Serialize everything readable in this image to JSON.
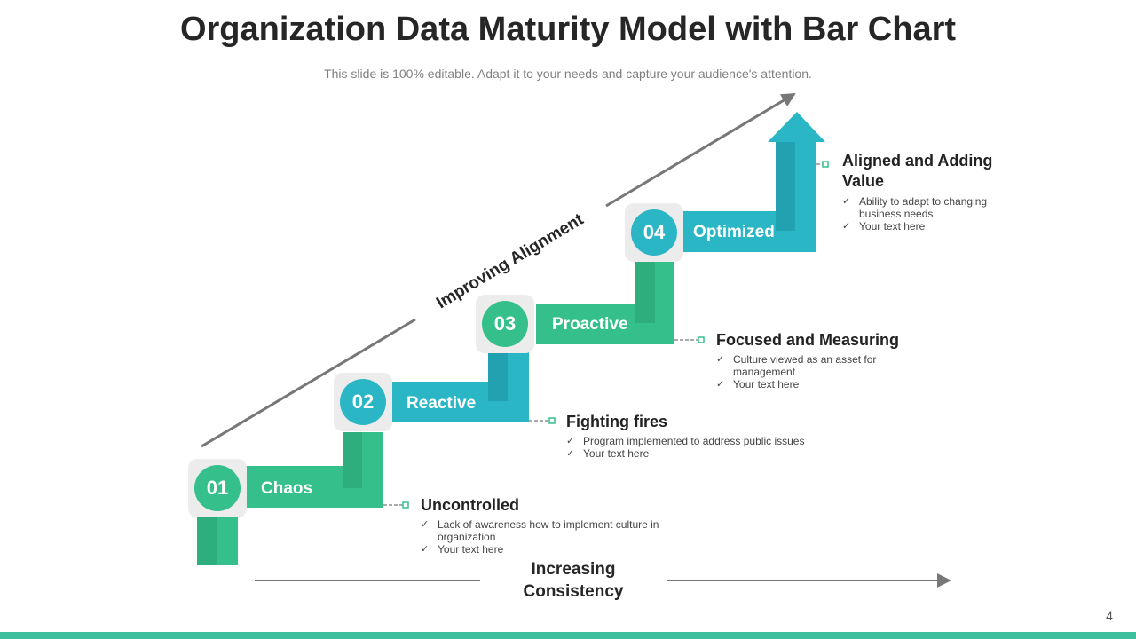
{
  "header": {
    "title": "Organization Data Maturity Model with Bar Chart",
    "subtitle": "This slide is 100% editable. Adapt it to your needs and capture your audience's attention."
  },
  "axes": {
    "diagonal": "Improving Alignment",
    "horizontal": "Increasing Consistency"
  },
  "steps": [
    {
      "number": "01",
      "label": "Chaos",
      "heading": "Uncontrolled",
      "bullets": [
        "Lack of awareness how to implement culture in organization",
        "Your text here"
      ]
    },
    {
      "number": "02",
      "label": "Reactive",
      "heading": "Fighting fires",
      "bullets": [
        "Program implemented to address public issues",
        "Your text here"
      ]
    },
    {
      "number": "03",
      "label": "Proactive",
      "heading": "Focused and Measuring",
      "bullets": [
        "Culture viewed as an asset for management",
        "Your text here"
      ]
    },
    {
      "number": "04",
      "label": "Optimized",
      "heading": "Aligned and Adding Value",
      "bullets": [
        "Ability to adapt to changing business needs",
        "Your text here"
      ]
    }
  ],
  "page_number": "4"
}
